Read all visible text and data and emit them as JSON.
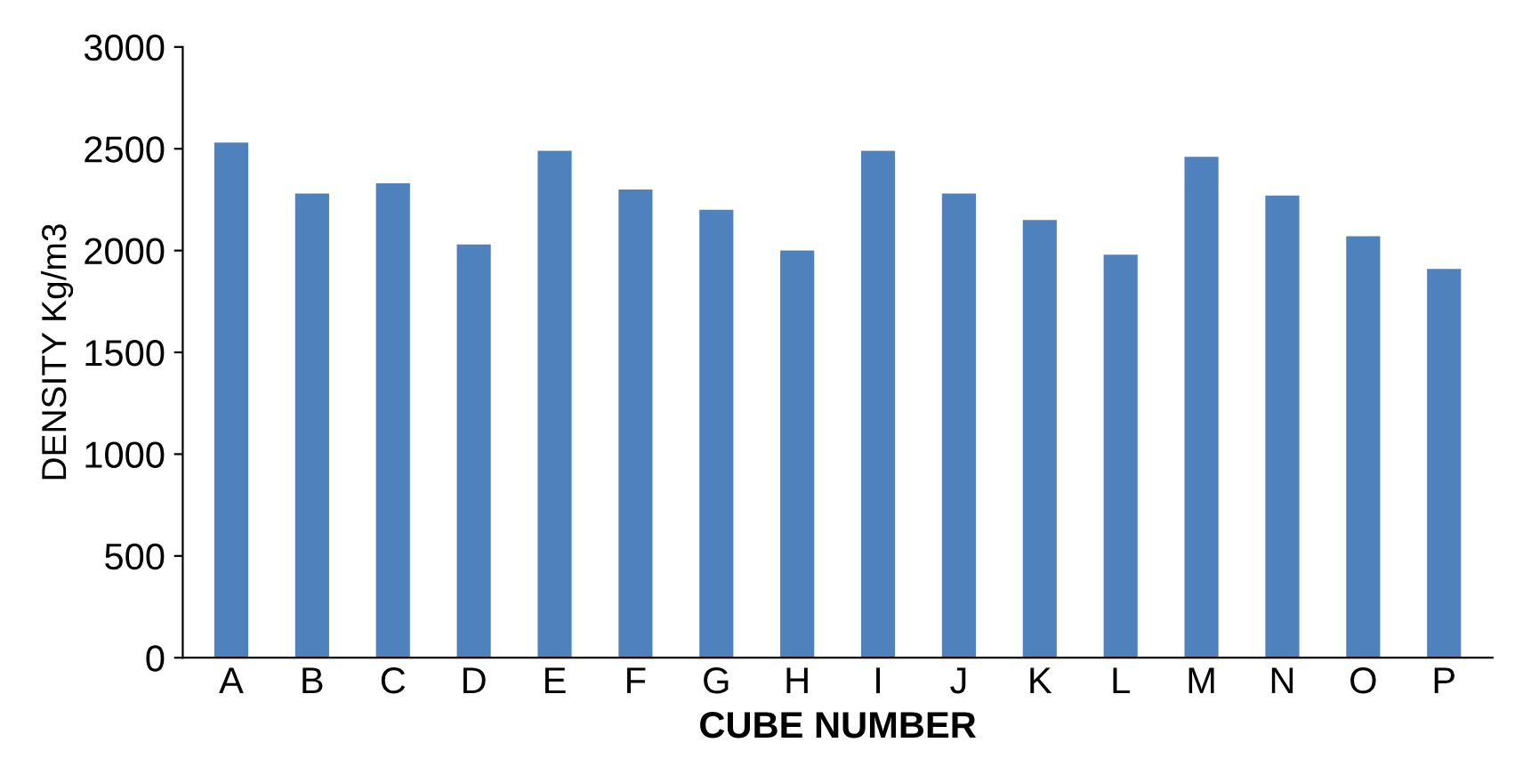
{
  "chart_data": {
    "type": "bar",
    "xlabel": "CUBE NUMBER",
    "ylabel": "DENSITY Kg/m3",
    "categories": [
      "A",
      "B",
      "C",
      "D",
      "E",
      "F",
      "G",
      "H",
      "I",
      "J",
      "K",
      "L",
      "M",
      "N",
      "O",
      "P"
    ],
    "values": [
      2530,
      2280,
      2330,
      2030,
      2490,
      2300,
      2200,
      2000,
      2490,
      2280,
      2150,
      1980,
      2460,
      2270,
      2070,
      1910
    ],
    "color": "#4f81bd",
    "ylim": [
      0,
      3000
    ],
    "yticks": [
      0,
      500,
      1000,
      1500,
      2000,
      2500,
      3000
    ],
    "grid": false,
    "legend": false
  }
}
